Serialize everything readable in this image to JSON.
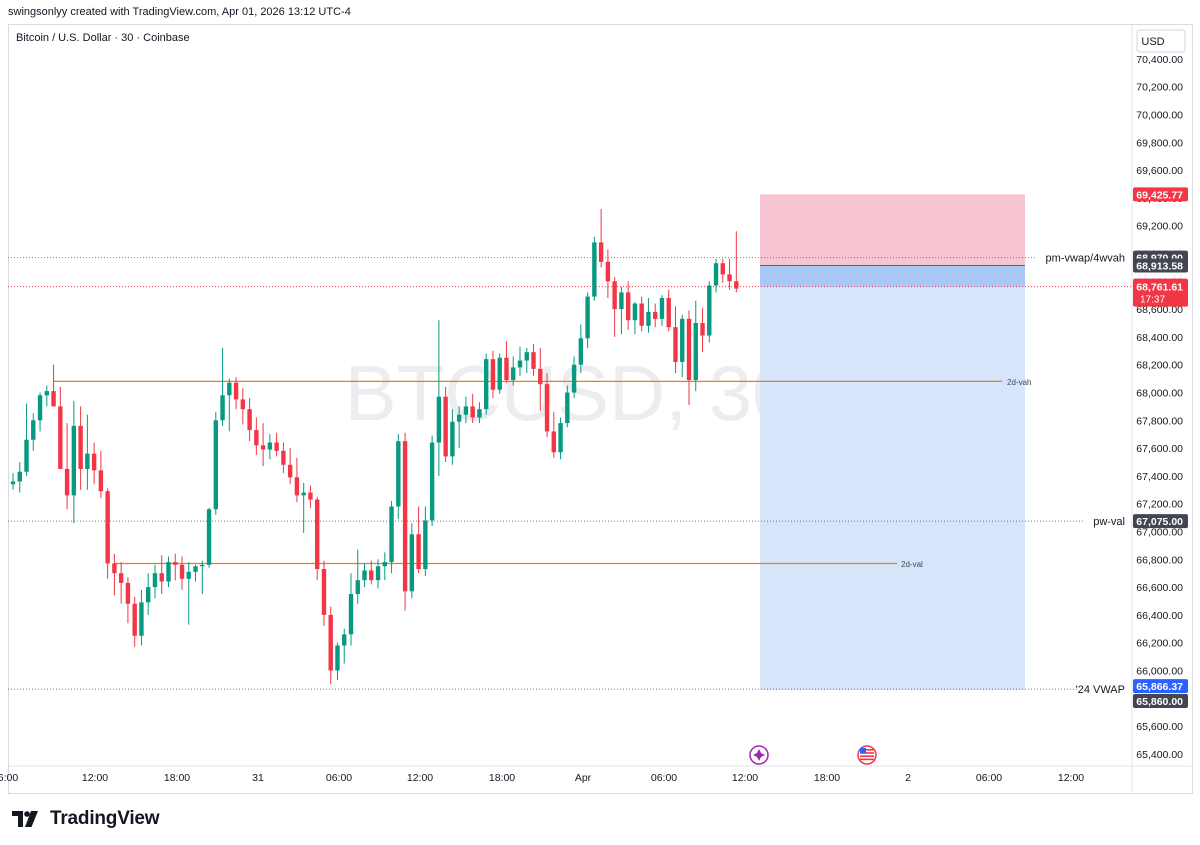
{
  "header": {
    "credit": "swingsonlyy created with TradingView.com, Apr 01, 2026 13:12 UTC-4",
    "symbol_title": "Bitcoin / U.S. Dollar · 30 · Coinbase",
    "watermark": "BTCUSD, 30"
  },
  "price_axis": {
    "currency": "USD",
    "ticks": [
      "70,400.00",
      "70,200.00",
      "70,000.00",
      "69,800.00",
      "69,600.00",
      "69,400.00",
      "69,200.00",
      "69,000.00",
      "68,800.00",
      "68,600.00",
      "68,400.00",
      "68,200.00",
      "68,000.00",
      "67,800.00",
      "67,600.00",
      "67,400.00",
      "67,200.00",
      "67,000.00",
      "66,800.00",
      "66,600.00",
      "66,400.00",
      "66,200.00",
      "66,000.00",
      "65,800.00",
      "65,600.00",
      "65,400.00"
    ]
  },
  "time_axis": {
    "labels": [
      "6:00",
      "12:00",
      "18:00",
      "31",
      "06:00",
      "12:00",
      "18:00",
      "Apr",
      "06:00",
      "12:00",
      "18:00",
      "2",
      "06:00",
      "12:00"
    ]
  },
  "badges": {
    "target": "69,425.77",
    "pm_vwap": "68,970.00",
    "entry": "68,913.58",
    "last_price": "68,761.61",
    "countdown": "17:37",
    "pw_val": "67,075.00",
    "vwap24": "65,866.37",
    "stop": "65,860.00"
  },
  "level_labels": {
    "pm_vwap": "pm-vwap/4wvah",
    "pw_val": "pw-val",
    "vwap24": "'24 VWAP",
    "d2_vah": "2d-vah",
    "d2_val": "2d-val"
  },
  "colors": {
    "up": "#089981",
    "down": "#f23645",
    "orange": "#f57c00",
    "profit_zone": "#f8c5d2",
    "risk_zone": "#d7e5fb",
    "entry_band": "#a9c8f5",
    "badge_dark": "#434651",
    "badge_red": "#f23645",
    "badge_blue": "#2962ff"
  },
  "branding": {
    "logo_text": "TradingView"
  },
  "chart_data": {
    "type": "candlestick",
    "title": "Bitcoin / U.S. Dollar · 30 · Coinbase",
    "interval": "30",
    "ylim": [
      65300,
      70500
    ],
    "candles": [
      {
        "o": 67340,
        "h": 67420,
        "l": 67300,
        "c": 67360
      },
      {
        "o": 67360,
        "h": 67500,
        "l": 67280,
        "c": 67430
      },
      {
        "o": 67430,
        "h": 67920,
        "l": 67400,
        "c": 67660
      },
      {
        "o": 67660,
        "h": 67850,
        "l": 67580,
        "c": 67800
      },
      {
        "o": 67800,
        "h": 68000,
        "l": 67720,
        "c": 67980
      },
      {
        "o": 67980,
        "h": 68050,
        "l": 67900,
        "c": 68010
      },
      {
        "o": 68010,
        "h": 68200,
        "l": 67900,
        "c": 67900
      },
      {
        "o": 67900,
        "h": 68040,
        "l": 67450,
        "c": 67450
      },
      {
        "o": 67450,
        "h": 67780,
        "l": 67160,
        "c": 67260
      },
      {
        "o": 67260,
        "h": 67940,
        "l": 67060,
        "c": 67760
      },
      {
        "o": 67760,
        "h": 67900,
        "l": 67300,
        "c": 67450
      },
      {
        "o": 67450,
        "h": 67840,
        "l": 67300,
        "c": 67560
      },
      {
        "o": 67560,
        "h": 67640,
        "l": 67340,
        "c": 67440
      },
      {
        "o": 67440,
        "h": 67580,
        "l": 67240,
        "c": 67290
      },
      {
        "o": 67290,
        "h": 67310,
        "l": 66660,
        "c": 66770
      },
      {
        "o": 66770,
        "h": 66840,
        "l": 66540,
        "c": 66700
      },
      {
        "o": 66700,
        "h": 66780,
        "l": 66480,
        "c": 66630
      },
      {
        "o": 66630,
        "h": 66670,
        "l": 66340,
        "c": 66480
      },
      {
        "o": 66480,
        "h": 66530,
        "l": 66170,
        "c": 66250
      },
      {
        "o": 66250,
        "h": 66580,
        "l": 66180,
        "c": 66490
      },
      {
        "o": 66490,
        "h": 66700,
        "l": 66400,
        "c": 66600
      },
      {
        "o": 66600,
        "h": 66760,
        "l": 66520,
        "c": 66700
      },
      {
        "o": 66700,
        "h": 66830,
        "l": 66550,
        "c": 66640
      },
      {
        "o": 66640,
        "h": 66820,
        "l": 66600,
        "c": 66780
      },
      {
        "o": 66780,
        "h": 66840,
        "l": 66650,
        "c": 66760
      },
      {
        "o": 66760,
        "h": 66820,
        "l": 66580,
        "c": 66660
      },
      {
        "o": 66660,
        "h": 66780,
        "l": 66330,
        "c": 66710
      },
      {
        "o": 66710,
        "h": 66760,
        "l": 66640,
        "c": 66750
      },
      {
        "o": 66750,
        "h": 66790,
        "l": 66550,
        "c": 66760
      },
      {
        "o": 66760,
        "h": 67170,
        "l": 66740,
        "c": 67160
      },
      {
        "o": 67160,
        "h": 67860,
        "l": 67120,
        "c": 67800
      },
      {
        "o": 67800,
        "h": 68320,
        "l": 67760,
        "c": 67980
      },
      {
        "o": 67980,
        "h": 68100,
        "l": 67720,
        "c": 68070
      },
      {
        "o": 68070,
        "h": 68110,
        "l": 67880,
        "c": 67950
      },
      {
        "o": 67950,
        "h": 68030,
        "l": 67770,
        "c": 67880
      },
      {
        "o": 67880,
        "h": 67960,
        "l": 67650,
        "c": 67730
      },
      {
        "o": 67730,
        "h": 67820,
        "l": 67550,
        "c": 67620
      },
      {
        "o": 67620,
        "h": 67780,
        "l": 67470,
        "c": 67590
      },
      {
        "o": 67590,
        "h": 67700,
        "l": 67520,
        "c": 67640
      },
      {
        "o": 67640,
        "h": 67710,
        "l": 67540,
        "c": 67580
      },
      {
        "o": 67580,
        "h": 67640,
        "l": 67420,
        "c": 67480
      },
      {
        "o": 67480,
        "h": 67600,
        "l": 67340,
        "c": 67390
      },
      {
        "o": 67390,
        "h": 67530,
        "l": 67210,
        "c": 67260
      },
      {
        "o": 67260,
        "h": 67350,
        "l": 66990,
        "c": 67280
      },
      {
        "o": 67280,
        "h": 67330,
        "l": 67170,
        "c": 67230
      },
      {
        "o": 67230,
        "h": 67250,
        "l": 66650,
        "c": 66730
      },
      {
        "o": 66730,
        "h": 66790,
        "l": 66320,
        "c": 66400
      },
      {
        "o": 66400,
        "h": 66460,
        "l": 65900,
        "c": 66000
      },
      {
        "o": 66000,
        "h": 66200,
        "l": 65930,
        "c": 66180
      },
      {
        "o": 66180,
        "h": 66300,
        "l": 66050,
        "c": 66260
      },
      {
        "o": 66260,
        "h": 66700,
        "l": 66180,
        "c": 66550
      },
      {
        "o": 66550,
        "h": 66870,
        "l": 66480,
        "c": 66650
      },
      {
        "o": 66650,
        "h": 66770,
        "l": 66600,
        "c": 66720
      },
      {
        "o": 66720,
        "h": 66790,
        "l": 66620,
        "c": 66650
      },
      {
        "o": 66650,
        "h": 66800,
        "l": 66590,
        "c": 66750
      },
      {
        "o": 66750,
        "h": 66850,
        "l": 66650,
        "c": 66780
      },
      {
        "o": 66780,
        "h": 67220,
        "l": 66700,
        "c": 67180
      },
      {
        "o": 67180,
        "h": 67700,
        "l": 67090,
        "c": 67650
      },
      {
        "o": 67650,
        "h": 67710,
        "l": 66430,
        "c": 66570
      },
      {
        "o": 66570,
        "h": 67060,
        "l": 66520,
        "c": 66980
      },
      {
        "o": 66980,
        "h": 67180,
        "l": 66700,
        "c": 66730
      },
      {
        "o": 66730,
        "h": 67180,
        "l": 66680,
        "c": 67080
      },
      {
        "o": 67080,
        "h": 67690,
        "l": 67040,
        "c": 67640
      },
      {
        "o": 67640,
        "h": 68520,
        "l": 67400,
        "c": 67970
      },
      {
        "o": 67970,
        "h": 68040,
        "l": 67500,
        "c": 67540
      },
      {
        "o": 67540,
        "h": 67880,
        "l": 67480,
        "c": 67790
      },
      {
        "o": 67790,
        "h": 67900,
        "l": 67600,
        "c": 67840
      },
      {
        "o": 67840,
        "h": 67970,
        "l": 67780,
        "c": 67900
      },
      {
        "o": 67900,
        "h": 67990,
        "l": 67780,
        "c": 67820
      },
      {
        "o": 67820,
        "h": 67930,
        "l": 67780,
        "c": 67880
      },
      {
        "o": 67880,
        "h": 68280,
        "l": 67840,
        "c": 68240
      },
      {
        "o": 68240,
        "h": 68300,
        "l": 67960,
        "c": 68020
      },
      {
        "o": 68020,
        "h": 68280,
        "l": 67990,
        "c": 68250
      },
      {
        "o": 68250,
        "h": 68370,
        "l": 68070,
        "c": 68090
      },
      {
        "o": 68090,
        "h": 68260,
        "l": 68050,
        "c": 68180
      },
      {
        "o": 68180,
        "h": 68330,
        "l": 68120,
        "c": 68230
      },
      {
        "o": 68230,
        "h": 68320,
        "l": 68140,
        "c": 68290
      },
      {
        "o": 68290,
        "h": 68350,
        "l": 68120,
        "c": 68170
      },
      {
        "o": 68170,
        "h": 68320,
        "l": 67870,
        "c": 68060
      },
      {
        "o": 68060,
        "h": 68140,
        "l": 67680,
        "c": 67720
      },
      {
        "o": 67720,
        "h": 67860,
        "l": 67530,
        "c": 67570
      },
      {
        "o": 67570,
        "h": 67820,
        "l": 67520,
        "c": 67780
      },
      {
        "o": 67780,
        "h": 68050,
        "l": 67750,
        "c": 68000
      },
      {
        "o": 68000,
        "h": 68260,
        "l": 67960,
        "c": 68200
      },
      {
        "o": 68200,
        "h": 68490,
        "l": 68140,
        "c": 68390
      },
      {
        "o": 68390,
        "h": 68720,
        "l": 68320,
        "c": 68690
      },
      {
        "o": 68690,
        "h": 69120,
        "l": 68660,
        "c": 69080
      },
      {
        "o": 69080,
        "h": 69320,
        "l": 68900,
        "c": 68940
      },
      {
        "o": 68940,
        "h": 69030,
        "l": 68680,
        "c": 68800
      },
      {
        "o": 68800,
        "h": 68830,
        "l": 68400,
        "c": 68600
      },
      {
        "o": 68600,
        "h": 68760,
        "l": 68420,
        "c": 68720
      },
      {
        "o": 68720,
        "h": 68800,
        "l": 68450,
        "c": 68520
      },
      {
        "o": 68520,
        "h": 68650,
        "l": 68420,
        "c": 68640
      },
      {
        "o": 68640,
        "h": 68690,
        "l": 68440,
        "c": 68480
      },
      {
        "o": 68480,
        "h": 68680,
        "l": 68430,
        "c": 68580
      },
      {
        "o": 68580,
        "h": 68640,
        "l": 68470,
        "c": 68530
      },
      {
        "o": 68530,
        "h": 68700,
        "l": 68480,
        "c": 68680
      },
      {
        "o": 68680,
        "h": 68740,
        "l": 68440,
        "c": 68470
      },
      {
        "o": 68470,
        "h": 68620,
        "l": 68140,
        "c": 68220
      },
      {
        "o": 68220,
        "h": 68560,
        "l": 68110,
        "c": 68530
      },
      {
        "o": 68530,
        "h": 68590,
        "l": 67910,
        "c": 68090
      },
      {
        "o": 68090,
        "h": 68660,
        "l": 68010,
        "c": 68500
      },
      {
        "o": 68500,
        "h": 68610,
        "l": 68290,
        "c": 68410
      },
      {
        "o": 68410,
        "h": 68800,
        "l": 68360,
        "c": 68770
      },
      {
        "o": 68770,
        "h": 68960,
        "l": 68720,
        "c": 68930
      },
      {
        "o": 68930,
        "h": 68960,
        "l": 68790,
        "c": 68850
      },
      {
        "o": 68850,
        "h": 68960,
        "l": 68740,
        "c": 68800
      },
      {
        "o": 68800,
        "h": 69160,
        "l": 68720,
        "c": 68761.61
      }
    ],
    "levels": [
      {
        "name": "pm-vwap/4wvah",
        "price": 68970.0
      },
      {
        "name": "pw-val",
        "price": 67075.0
      },
      {
        "name": "'24 VWAP",
        "price": 65866.37
      },
      {
        "name": "2d-vah",
        "price": 68080
      },
      {
        "name": "2d-val",
        "price": 66770
      },
      {
        "name": "last",
        "price": 68761.61
      }
    ],
    "position": {
      "type": "short",
      "target": 69425.77,
      "entry": 68913.58,
      "stop": 65860.0
    }
  }
}
